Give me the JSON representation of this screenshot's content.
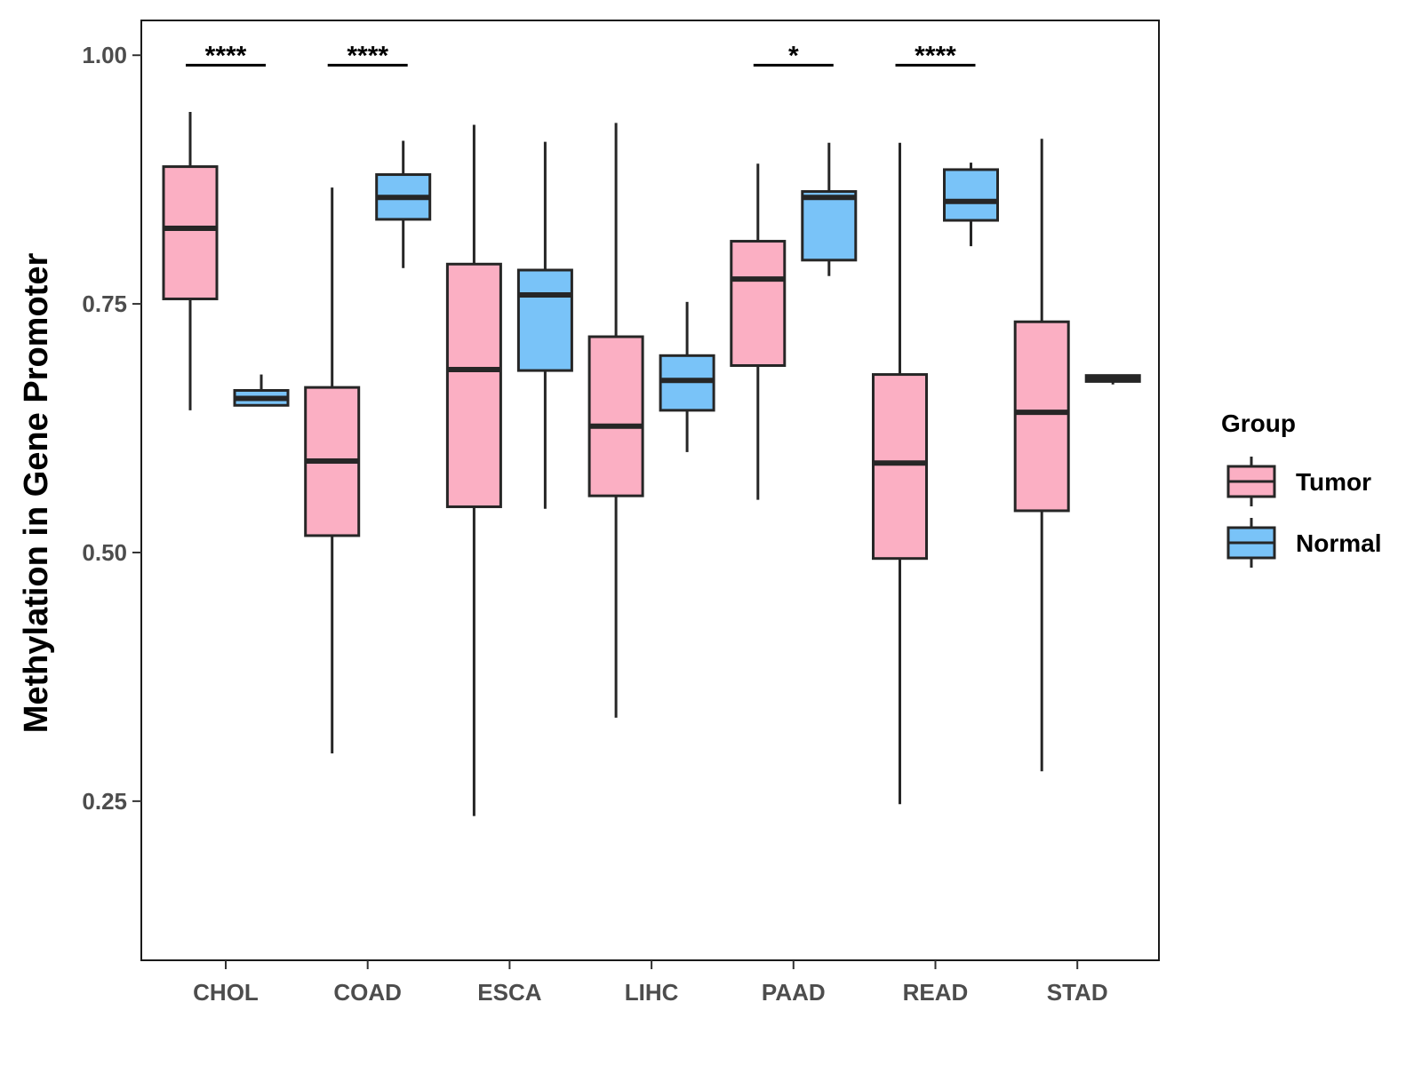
{
  "chart_data": {
    "type": "boxplot",
    "title": "",
    "xlabel": "",
    "ylabel": "Methylation in Gene Promoter",
    "ylim": [
      0.09,
      1.035
    ],
    "yticks": [
      {
        "value": 0.25,
        "label": "0.25"
      },
      {
        "value": 0.5,
        "label": "0.50"
      },
      {
        "value": 0.75,
        "label": "0.75"
      },
      {
        "value": 1.0,
        "label": "1.00"
      }
    ],
    "categories": [
      "CHOL",
      "COAD",
      "ESCA",
      "LIHC",
      "PAAD",
      "READ",
      "STAD"
    ],
    "legend": {
      "title": "Group",
      "placement": "right",
      "entries": [
        {
          "name": "Tumor",
          "color": "#FBAFC3"
        },
        {
          "name": "Normal",
          "color": "#79C3F8"
        }
      ]
    },
    "series": [
      {
        "name": "Tumor",
        "color": "#FBAFC3",
        "boxes": [
          {
            "category": "CHOL",
            "min": 0.643,
            "q1": 0.755,
            "median": 0.826,
            "q3": 0.888,
            "max": 0.943
          },
          {
            "category": "COAD",
            "min": 0.298,
            "q1": 0.517,
            "median": 0.592,
            "q3": 0.666,
            "max": 0.867
          },
          {
            "category": "ESCA",
            "min": 0.235,
            "q1": 0.546,
            "median": 0.684,
            "q3": 0.79,
            "max": 0.93
          },
          {
            "category": "LIHC",
            "min": 0.334,
            "q1": 0.557,
            "median": 0.627,
            "q3": 0.717,
            "max": 0.932
          },
          {
            "category": "PAAD",
            "min": 0.553,
            "q1": 0.688,
            "median": 0.775,
            "q3": 0.813,
            "max": 0.891
          },
          {
            "category": "READ",
            "min": 0.247,
            "q1": 0.494,
            "median": 0.59,
            "q3": 0.679,
            "max": 0.912
          },
          {
            "category": "STAD",
            "min": 0.28,
            "q1": 0.542,
            "median": 0.641,
            "q3": 0.732,
            "max": 0.916
          }
        ]
      },
      {
        "name": "Normal",
        "color": "#79C3F8",
        "boxes": [
          {
            "category": "CHOL",
            "min": 0.648,
            "q1": 0.648,
            "median": 0.655,
            "q3": 0.663,
            "max": 0.679
          },
          {
            "category": "COAD",
            "min": 0.786,
            "q1": 0.835,
            "median": 0.857,
            "q3": 0.88,
            "max": 0.914
          },
          {
            "category": "ESCA",
            "min": 0.544,
            "q1": 0.683,
            "median": 0.759,
            "q3": 0.784,
            "max": 0.913
          },
          {
            "category": "LIHC",
            "min": 0.601,
            "q1": 0.643,
            "median": 0.673,
            "q3": 0.698,
            "max": 0.752
          },
          {
            "category": "PAAD",
            "min": 0.778,
            "q1": 0.794,
            "median": 0.857,
            "q3": 0.863,
            "max": 0.912
          },
          {
            "category": "READ",
            "min": 0.808,
            "q1": 0.834,
            "median": 0.853,
            "q3": 0.885,
            "max": 0.892
          },
          {
            "category": "STAD",
            "min": 0.669,
            "q1": 0.672,
            "median": 0.675,
            "q3": 0.678,
            "max": 0.679
          }
        ]
      }
    ],
    "annotations": [
      {
        "category": "CHOL",
        "label": "****",
        "y": 0.99
      },
      {
        "category": "COAD",
        "label": "****",
        "y": 0.99
      },
      {
        "category": "PAAD",
        "label": "*",
        "y": 0.99
      },
      {
        "category": "READ",
        "label": "****",
        "y": 0.99
      }
    ]
  }
}
